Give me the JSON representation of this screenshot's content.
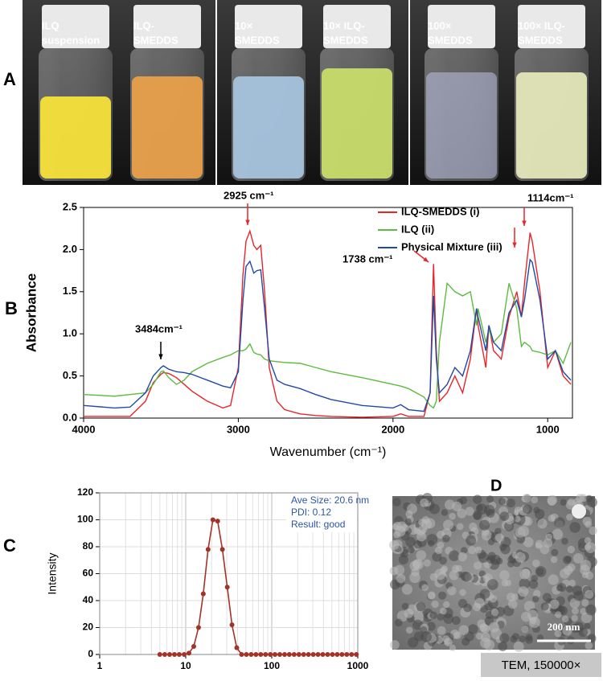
{
  "panels": {
    "a": "A",
    "b": "B",
    "c": "C",
    "d": "D"
  },
  "photos": [
    {
      "lines": [
        "ILQ",
        "suspension"
      ]
    },
    {
      "lines": [
        "ILQ-",
        "SMEDDS"
      ]
    },
    {
      "lines": [
        "10×",
        "SMEDDS"
      ]
    },
    {
      "lines": [
        "10×  ILQ-",
        "SMEDDS"
      ]
    },
    {
      "lines": [
        "100×",
        "SMEDDS"
      ]
    },
    {
      "lines": [
        "100× ILQ-",
        "SMEDDS"
      ]
    }
  ],
  "tem": {
    "scale": "200 nm",
    "caption": "TEM, 150000×"
  },
  "chart_data": [
    {
      "type": "line",
      "xlabel": "Wavenumber (cm⁻¹)",
      "ylabel": "Absorbance",
      "x": [
        4000,
        3800,
        3700,
        3600,
        3550,
        3500,
        3484,
        3450,
        3400,
        3350,
        3300,
        3200,
        3100,
        3050,
        3000,
        2970,
        2950,
        2925,
        2900,
        2880,
        2855,
        2830,
        2800,
        2750,
        2700,
        2600,
        2500,
        2400,
        2200,
        2000,
        1950,
        1900,
        1800,
        1760,
        1738,
        1720,
        1700,
        1650,
        1600,
        1550,
        1500,
        1460,
        1450,
        1400,
        1380,
        1350,
        1300,
        1250,
        1200,
        1170,
        1150,
        1114,
        1100,
        1050,
        1000,
        950,
        900,
        850
      ],
      "series": [
        {
          "name": "ILQ-SMEDDS (i)",
          "color": "#e8262a",
          "values": [
            0.02,
            0.02,
            0.02,
            0.2,
            0.42,
            0.52,
            0.54,
            0.53,
            0.48,
            0.4,
            0.32,
            0.2,
            0.12,
            0.15,
            0.6,
            1.7,
            2.1,
            2.22,
            2.05,
            2.0,
            2.05,
            1.5,
            0.6,
            0.2,
            0.1,
            0.05,
            0.03,
            0.02,
            0.01,
            0.02,
            0.05,
            0.02,
            0.02,
            0.3,
            1.83,
            0.8,
            0.2,
            0.3,
            0.5,
            0.3,
            0.7,
            1.3,
            1.1,
            0.6,
            1.1,
            0.8,
            0.7,
            1.2,
            1.5,
            1.2,
            1.6,
            2.2,
            2.1,
            1.5,
            0.6,
            0.8,
            0.5,
            0.4
          ]
        },
        {
          "name": "ILQ  (ii)",
          "color": "#5dbb3f",
          "values": [
            0.28,
            0.26,
            0.28,
            0.3,
            0.4,
            0.55,
            0.56,
            0.48,
            0.4,
            0.45,
            0.55,
            0.65,
            0.72,
            0.75,
            0.8,
            0.8,
            0.82,
            0.88,
            0.78,
            0.76,
            0.75,
            0.7,
            0.68,
            0.67,
            0.66,
            0.65,
            0.6,
            0.55,
            0.48,
            0.4,
            0.38,
            0.35,
            0.25,
            0.15,
            0.12,
            0.2,
            0.9,
            1.6,
            1.5,
            1.45,
            1.5,
            1.1,
            1.3,
            0.9,
            1.05,
            0.9,
            1.0,
            1.6,
            1.3,
            0.85,
            0.9,
            0.85,
            0.8,
            0.78,
            0.75,
            0.8,
            0.65,
            0.9
          ]
        },
        {
          "name": "Physical Mixture (iii)",
          "color": "#2149a8",
          "values": [
            0.15,
            0.12,
            0.13,
            0.3,
            0.5,
            0.6,
            0.62,
            0.58,
            0.55,
            0.54,
            0.52,
            0.45,
            0.38,
            0.36,
            0.55,
            1.4,
            1.8,
            1.86,
            1.72,
            1.75,
            1.76,
            1.3,
            0.7,
            0.45,
            0.4,
            0.35,
            0.28,
            0.22,
            0.15,
            0.12,
            0.16,
            0.1,
            0.08,
            0.3,
            1.45,
            0.7,
            0.3,
            0.4,
            0.6,
            0.5,
            0.8,
            1.3,
            1.2,
            0.8,
            1.1,
            0.9,
            0.8,
            1.25,
            1.4,
            1.2,
            1.4,
            1.88,
            1.85,
            1.4,
            0.7,
            0.8,
            0.55,
            0.45
          ]
        }
      ],
      "xlim": [
        4000,
        840
      ],
      "xticks": [
        4000,
        3000,
        2000,
        1000
      ],
      "ylim": [
        0,
        2.5
      ],
      "yticks": [
        {
          "value": 0,
          "label": "0.0"
        },
        0.5,
        {
          "value": 1,
          "label": "1.0"
        },
        1.5,
        {
          "value": 2,
          "label": "2.0"
        },
        2.5
      ],
      "annotations": [
        "2925 cm⁻¹",
        "3484cm⁻¹",
        "1738 cm⁻¹",
        "1114cm⁻¹"
      ]
    },
    {
      "type": "line",
      "ylabel": "Intensity",
      "log_x": true,
      "minor_grid": true,
      "markers": true,
      "x": [
        5.0,
        5.7,
        6.5,
        7.4,
        8.4,
        9.6,
        10.9,
        12.4,
        14.1,
        16.0,
        18.2,
        20.7,
        23.5,
        26.7,
        30.4,
        34.5,
        39.2,
        44.6,
        50.7,
        57.6,
        65.5,
        74.5,
        84.7,
        96.3,
        109,
        124,
        141,
        160,
        182,
        207,
        235,
        267,
        304,
        345,
        392,
        446,
        507,
        576,
        655,
        745,
        847,
        963
      ],
      "series": [
        {
          "name": null,
          "color": "#a33328",
          "values": [
            0,
            0,
            0,
            0,
            0,
            0,
            1,
            6,
            20,
            45,
            78,
            100,
            99,
            78,
            50,
            22,
            5,
            0,
            0,
            0,
            0,
            0,
            0,
            0,
            0,
            0,
            0,
            0,
            0,
            0,
            0,
            0,
            0,
            0,
            0,
            0,
            0,
            0,
            0,
            0,
            0,
            0
          ]
        }
      ],
      "xlim": [
        1,
        1000
      ],
      "xticks": [
        1,
        10,
        100,
        1000
      ],
      "ylim": [
        0,
        120
      ],
      "yticks": [
        0,
        20,
        40,
        60,
        80,
        100,
        120
      ],
      "grid": true,
      "annotations": [
        "Ave Size: 20.6 nm",
        "PDI: 0.12",
        "Result: good"
      ]
    }
  ]
}
